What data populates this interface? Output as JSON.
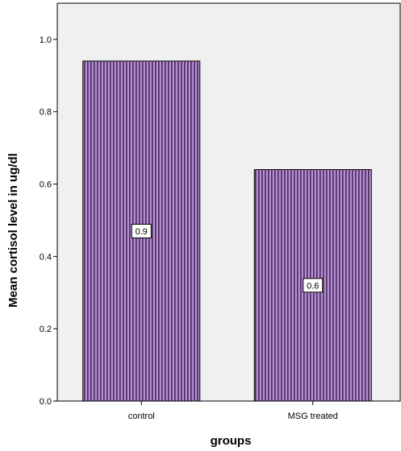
{
  "chart_data": {
    "type": "bar",
    "title": "",
    "xlabel": "groups",
    "ylabel": "Mean cortisol level in ug/dl",
    "categories": [
      "control",
      "MSG treated"
    ],
    "values": [
      0.94,
      0.64
    ],
    "data_labels": [
      "0.9",
      "0.6"
    ],
    "ylim": [
      0,
      1.1
    ],
    "yticks": [
      "0.0",
      "0.2",
      "0.4",
      "0.6",
      "0.8",
      "1.0"
    ],
    "grid": false,
    "legend": "none",
    "colors": {
      "plot_background": "#f0f0f0",
      "bar_fill": "#b48fd4",
      "bar_stripe": "#4a2a5a",
      "bar_outline": "#000000"
    }
  }
}
